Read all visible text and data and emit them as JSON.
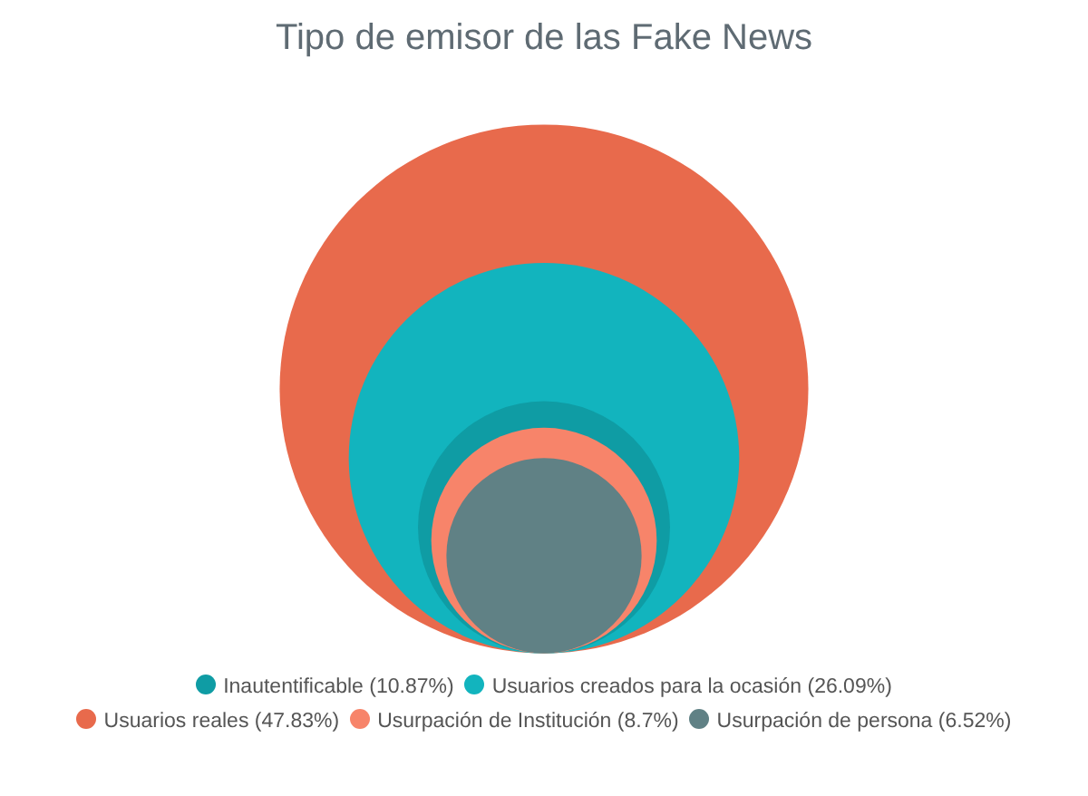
{
  "chart_data": {
    "type": "other",
    "title": "Tipo de emisor de las Fake News",
    "categories": [
      "Inautentificable",
      "Usuarios creados para la ocasión",
      "Usuarios reales",
      "Usurpación de Institución",
      "Usurpación de persona"
    ],
    "values": [
      10.87,
      26.09,
      47.83,
      8.7,
      6.52
    ],
    "value_labels": [
      "(10.87%)",
      "(26.09%)",
      "(47.83%)",
      "(8.7%)",
      "(6.52%)"
    ],
    "colors": [
      "#0f9ca4",
      "#12b4be",
      "#e86a4c",
      "#f7846a",
      "#608185"
    ]
  }
}
